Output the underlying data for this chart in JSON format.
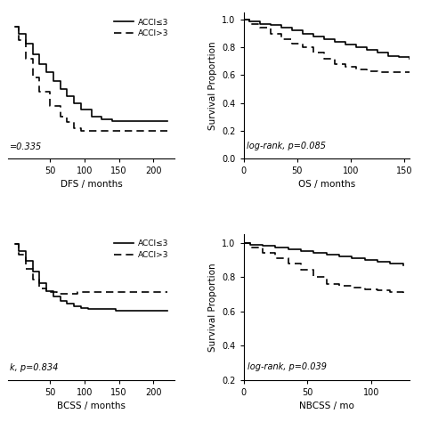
{
  "fig_width": 4.74,
  "fig_height": 4.74,
  "background_color": "#ffffff",
  "legend_labels": [
    "ACCI≤3",
    "ACCI>3"
  ],
  "dfs": {
    "xlabel": "DFS / months",
    "pvalue_text": "=0.335",
    "xlim": [
      -10,
      230
    ],
    "ylim": [
      0.0,
      1.05
    ],
    "xticks": [
      50,
      100,
      150,
      200
    ],
    "solid_x": [
      0,
      5,
      15,
      25,
      35,
      45,
      55,
      65,
      75,
      85,
      95,
      110,
      125,
      140,
      145,
      160,
      220
    ],
    "solid_y": [
      0.95,
      0.9,
      0.83,
      0.75,
      0.68,
      0.62,
      0.56,
      0.5,
      0.45,
      0.4,
      0.35,
      0.3,
      0.28,
      0.27,
      0.27,
      0.27,
      0.27
    ],
    "dashed_x": [
      0,
      5,
      15,
      25,
      35,
      50,
      65,
      75,
      85,
      95,
      105,
      115,
      220
    ],
    "dashed_y": [
      0.95,
      0.85,
      0.72,
      0.58,
      0.48,
      0.38,
      0.3,
      0.26,
      0.22,
      0.2,
      0.2,
      0.2,
      0.2
    ]
  },
  "os": {
    "xlabel": "OS / months",
    "ylabel": "Survival Proportion",
    "pvalue_text": "log-rank, p=0.085",
    "xlim": [
      0,
      155
    ],
    "ylim": [
      0.0,
      1.05
    ],
    "xticks": [
      0,
      50,
      100,
      150
    ],
    "yticks": [
      0.0,
      0.2,
      0.4,
      0.6,
      0.8,
      1.0
    ],
    "solid_x": [
      0,
      5,
      15,
      25,
      35,
      45,
      55,
      65,
      75,
      85,
      95,
      105,
      115,
      125,
      135,
      145,
      155
    ],
    "solid_y": [
      1.0,
      0.99,
      0.97,
      0.96,
      0.94,
      0.92,
      0.9,
      0.88,
      0.86,
      0.84,
      0.82,
      0.8,
      0.78,
      0.76,
      0.74,
      0.73,
      0.72
    ],
    "dashed_x": [
      0,
      5,
      15,
      25,
      35,
      45,
      55,
      65,
      75,
      85,
      95,
      105,
      115,
      125,
      135,
      145,
      155
    ],
    "dashed_y": [
      1.0,
      0.97,
      0.94,
      0.9,
      0.86,
      0.83,
      0.8,
      0.76,
      0.72,
      0.68,
      0.66,
      0.64,
      0.63,
      0.62,
      0.62,
      0.62,
      0.62
    ]
  },
  "bcss": {
    "xlabel": "BCSS / months",
    "pvalue_text": "k, p=0.834",
    "xlim": [
      -10,
      230
    ],
    "ylim": [
      0.0,
      1.05
    ],
    "xticks": [
      50,
      100,
      150,
      200
    ],
    "solid_x": [
      0,
      5,
      15,
      25,
      35,
      45,
      55,
      65,
      75,
      85,
      95,
      105,
      115,
      125,
      145,
      160,
      220
    ],
    "solid_y": [
      0.98,
      0.93,
      0.86,
      0.78,
      0.7,
      0.64,
      0.6,
      0.57,
      0.55,
      0.53,
      0.52,
      0.51,
      0.51,
      0.51,
      0.5,
      0.5,
      0.5
    ],
    "dashed_x": [
      0,
      5,
      15,
      25,
      35,
      45,
      60,
      75,
      90,
      100,
      110,
      120,
      220
    ],
    "dashed_y": [
      0.98,
      0.9,
      0.8,
      0.72,
      0.66,
      0.63,
      0.62,
      0.62,
      0.63,
      0.63,
      0.63,
      0.63,
      0.63
    ]
  },
  "nbcss": {
    "xlabel": "NBCSS / mo",
    "ylabel": "Survival Proportion",
    "pvalue_text": "log-rank, p=0.039",
    "xlim": [
      0,
      130
    ],
    "ylim": [
      0.2,
      1.05
    ],
    "xticks": [
      0,
      50,
      100
    ],
    "yticks": [
      0.2,
      0.4,
      0.6,
      0.8,
      1.0
    ],
    "solid_x": [
      0,
      5,
      15,
      25,
      35,
      45,
      55,
      65,
      75,
      85,
      95,
      105,
      115,
      125
    ],
    "solid_y": [
      1.0,
      0.99,
      0.98,
      0.97,
      0.96,
      0.95,
      0.94,
      0.93,
      0.92,
      0.91,
      0.9,
      0.89,
      0.88,
      0.87
    ],
    "dashed_x": [
      0,
      5,
      15,
      25,
      35,
      45,
      55,
      65,
      75,
      85,
      95,
      105,
      115,
      125
    ],
    "dashed_y": [
      1.0,
      0.97,
      0.94,
      0.91,
      0.88,
      0.84,
      0.8,
      0.76,
      0.75,
      0.74,
      0.73,
      0.72,
      0.71,
      0.7
    ]
  }
}
